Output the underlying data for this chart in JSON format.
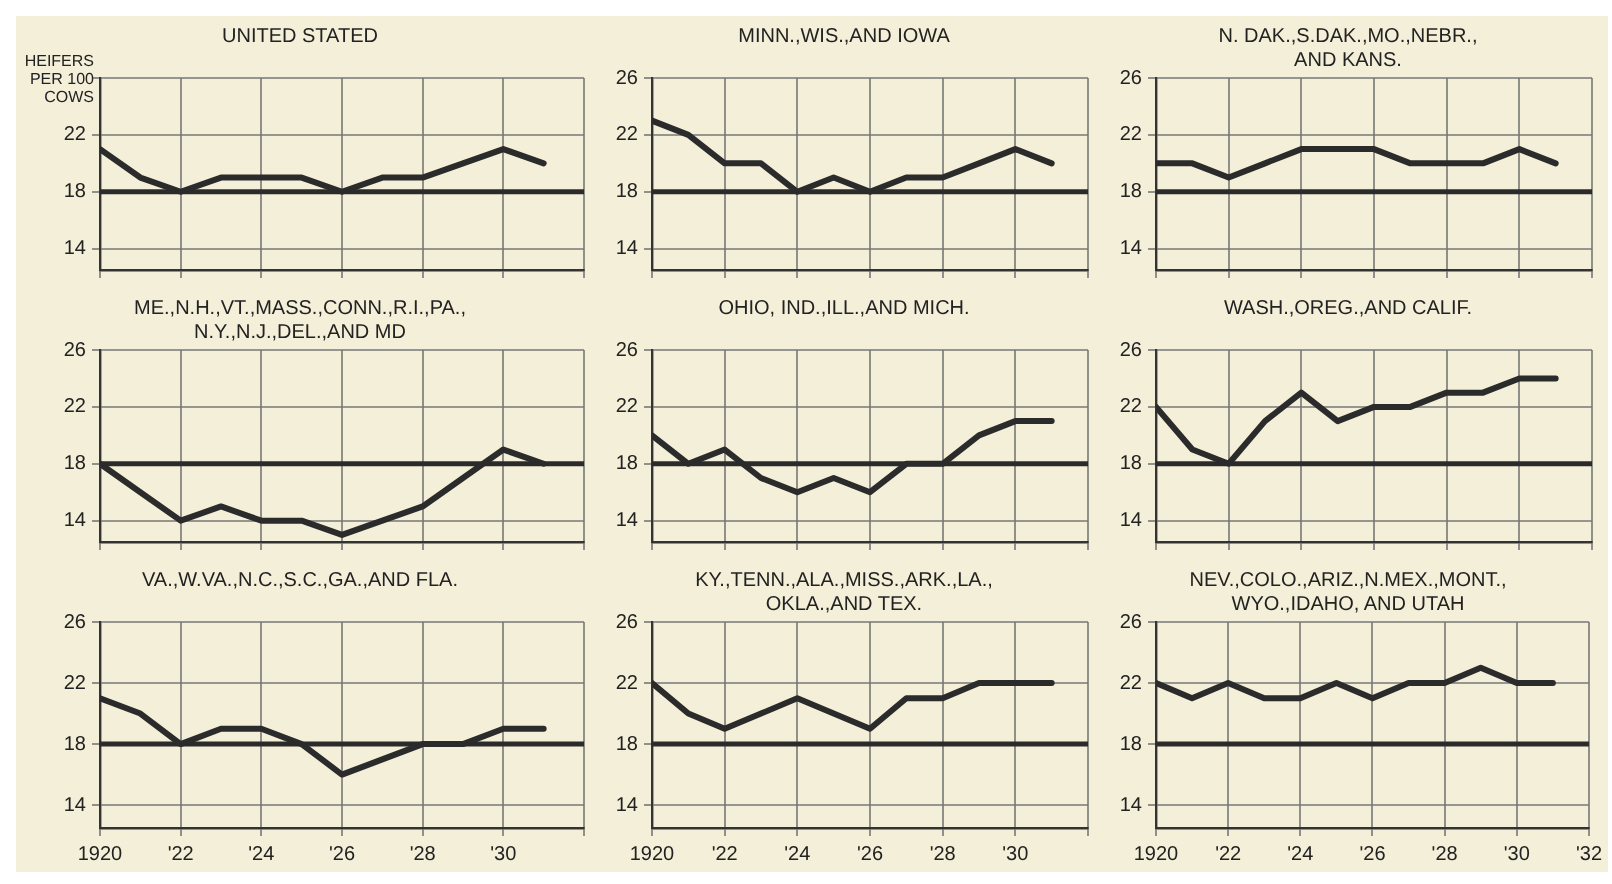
{
  "chart_data": [
    {
      "type": "line",
      "title": "UNITED STATED",
      "ylabel": "HEIFERS PER 100 COWS",
      "x": [
        1920,
        1921,
        1922,
        1923,
        1924,
        1925,
        1926,
        1927,
        1928,
        1929,
        1930,
        1931
      ],
      "series": [
        {
          "color": "#2b2b2b",
          "values": [
            21,
            19,
            18,
            19,
            19,
            19,
            18,
            19,
            19,
            20,
            21,
            20
          ]
        }
      ],
      "xlim": [
        1920,
        1932
      ],
      "xticks": [
        1920,
        1922,
        1924,
        1926,
        1928,
        1930,
        1932
      ],
      "ylim": [
        12.5,
        26
      ],
      "yticks": [
        14,
        18,
        22,
        {
          "value": 26,
          "label": null
        }
      ],
      "grid": true,
      "marker": "none",
      "ref_lines": [
        {
          "axis": "y",
          "value": 18,
          "color": "#2b2b2b"
        }
      ],
      "tick_labels": "y"
    },
    {
      "type": "line",
      "title": "MINN.,WIS.,AND IOWA",
      "x": [
        1920,
        1921,
        1922,
        1923,
        1924,
        1925,
        1926,
        1927,
        1928,
        1929,
        1930,
        1931
      ],
      "series": [
        {
          "color": "#2b2b2b",
          "values": [
            23,
            22,
            20,
            20,
            18,
            19,
            18,
            19,
            19,
            20,
            21,
            20
          ]
        }
      ],
      "xlim": [
        1920,
        1932
      ],
      "xticks": [
        1920,
        1922,
        1924,
        1926,
        1928,
        1930,
        1932
      ],
      "ylim": [
        12.5,
        26
      ],
      "yticks": [
        14,
        18,
        22,
        26
      ],
      "grid": true,
      "marker": "none",
      "ref_lines": [
        {
          "axis": "y",
          "value": 18,
          "color": "#2b2b2b"
        }
      ],
      "tick_labels": "y"
    },
    {
      "type": "line",
      "title": "N. DAK.,S.DAK.,MO.,NEBR.,\nAND KANS.",
      "x": [
        1920,
        1921,
        1922,
        1923,
        1924,
        1925,
        1926,
        1927,
        1928,
        1929,
        1930,
        1931
      ],
      "series": [
        {
          "color": "#2b2b2b",
          "values": [
            20,
            20,
            19,
            20,
            21,
            21,
            21,
            20,
            20,
            20,
            21,
            20
          ]
        }
      ],
      "xlim": [
        1920,
        1932
      ],
      "xticks": [
        1920,
        1922,
        1924,
        1926,
        1928,
        1930,
        1932
      ],
      "ylim": [
        12.5,
        26
      ],
      "yticks": [
        14,
        18,
        22,
        26
      ],
      "grid": true,
      "marker": "none",
      "ref_lines": [
        {
          "axis": "y",
          "value": 18,
          "color": "#2b2b2b"
        }
      ],
      "tick_labels": "y"
    },
    {
      "type": "line",
      "title": "ME.,N.H.,VT.,MASS.,CONN.,R.I.,PA.,\nN.Y.,N.J.,DEL.,AND MD",
      "x": [
        1920,
        1921,
        1922,
        1923,
        1924,
        1925,
        1926,
        1927,
        1928,
        1929,
        1930,
        1931
      ],
      "series": [
        {
          "color": "#2b2b2b",
          "values": [
            18,
            16,
            14,
            15,
            14,
            14,
            13,
            14,
            15,
            17,
            19,
            18
          ]
        }
      ],
      "xlim": [
        1920,
        1932
      ],
      "xticks": [
        1920,
        1922,
        1924,
        1926,
        1928,
        1930,
        1932
      ],
      "ylim": [
        12.5,
        26
      ],
      "yticks": [
        14,
        18,
        22,
        26
      ],
      "grid": true,
      "marker": "none",
      "ref_lines": [
        {
          "axis": "y",
          "value": 18,
          "color": "#2b2b2b"
        }
      ],
      "tick_labels": "y"
    },
    {
      "type": "line",
      "title": "OHIO, IND.,ILL.,AND MICH.",
      "x": [
        1920,
        1921,
        1922,
        1923,
        1924,
        1925,
        1926,
        1927,
        1928,
        1929,
        1930,
        1931
      ],
      "series": [
        {
          "color": "#2b2b2b",
          "values": [
            20,
            18,
            19,
            17,
            16,
            17,
            16,
            18,
            18,
            20,
            21,
            21
          ]
        }
      ],
      "xlim": [
        1920,
        1932
      ],
      "xticks": [
        1920,
        1922,
        1924,
        1926,
        1928,
        1930,
        1932
      ],
      "ylim": [
        12.5,
        26
      ],
      "yticks": [
        14,
        18,
        22,
        26
      ],
      "grid": true,
      "marker": "none",
      "ref_lines": [
        {
          "axis": "y",
          "value": 18,
          "color": "#2b2b2b"
        }
      ],
      "tick_labels": "y"
    },
    {
      "type": "line",
      "title": "WASH.,OREG.,AND CALIF.",
      "x": [
        1920,
        1921,
        1922,
        1923,
        1924,
        1925,
        1926,
        1927,
        1928,
        1929,
        1930,
        1931
      ],
      "series": [
        {
          "color": "#2b2b2b",
          "values": [
            22,
            19,
            18,
            21,
            23,
            21,
            22,
            22,
            23,
            23,
            24,
            24
          ]
        }
      ],
      "xlim": [
        1920,
        1932
      ],
      "xticks": [
        1920,
        1922,
        1924,
        1926,
        1928,
        1930,
        1932
      ],
      "ylim": [
        12.5,
        26
      ],
      "yticks": [
        14,
        18,
        22,
        26
      ],
      "grid": true,
      "marker": "none",
      "ref_lines": [
        {
          "axis": "y",
          "value": 18,
          "color": "#2b2b2b"
        }
      ],
      "tick_labels": "y"
    },
    {
      "type": "line",
      "title": "VA.,W.VA.,N.C.,S.C.,GA.,AND FLA.",
      "x": [
        1920,
        1921,
        1922,
        1923,
        1924,
        1925,
        1926,
        1927,
        1928,
        1929,
        1930,
        1931
      ],
      "series": [
        {
          "color": "#2b2b2b",
          "values": [
            21,
            20,
            18,
            19,
            19,
            18,
            16,
            17,
            18,
            18,
            19,
            19
          ]
        }
      ],
      "xlim": [
        1920,
        1932
      ],
      "xticks": [
        1920,
        {
          "value": 1922,
          "label": "'22"
        },
        {
          "value": 1924,
          "label": "'24"
        },
        {
          "value": 1926,
          "label": "'26"
        },
        {
          "value": 1928,
          "label": "'28"
        },
        {
          "value": 1930,
          "label": "'30"
        },
        {
          "value": 1932,
          "label": null
        }
      ],
      "ylim": [
        12.5,
        26
      ],
      "yticks": [
        14,
        18,
        22,
        26
      ],
      "grid": true,
      "marker": "none",
      "ref_lines": [
        {
          "axis": "y",
          "value": 18,
          "color": "#2b2b2b"
        }
      ]
    },
    {
      "type": "line",
      "title": "KY.,TENN.,ALA.,MISS.,ARK.,LA.,\nOKLA.,AND TEX.",
      "x": [
        1920,
        1921,
        1922,
        1923,
        1924,
        1925,
        1926,
        1927,
        1928,
        1929,
        1930,
        1931
      ],
      "series": [
        {
          "color": "#2b2b2b",
          "values": [
            22,
            20,
            19,
            20,
            21,
            20,
            19,
            21,
            21,
            22,
            22,
            22
          ]
        }
      ],
      "xlim": [
        1920,
        1932
      ],
      "xticks": [
        1920,
        {
          "value": 1922,
          "label": "'22"
        },
        {
          "value": 1924,
          "label": "'24"
        },
        {
          "value": 1926,
          "label": "'26"
        },
        {
          "value": 1928,
          "label": "'28"
        },
        {
          "value": 1930,
          "label": "'30"
        },
        {
          "value": 1932,
          "label": null
        }
      ],
      "ylim": [
        12.5,
        26
      ],
      "yticks": [
        14,
        18,
        22,
        26
      ],
      "grid": true,
      "marker": "none",
      "ref_lines": [
        {
          "axis": "y",
          "value": 18,
          "color": "#2b2b2b"
        }
      ]
    },
    {
      "type": "line",
      "title": "NEV.,COLO.,ARIZ.,N.MEX.,MONT.,\nWYO.,IDAHO, AND UTAH",
      "x": [
        1920,
        1921,
        1922,
        1923,
        1924,
        1925,
        1926,
        1927,
        1928,
        1929,
        1930,
        1931
      ],
      "series": [
        {
          "color": "#2b2b2b",
          "values": [
            22,
            21,
            22,
            21,
            21,
            22,
            21,
            22,
            22,
            23,
            22,
            22
          ]
        }
      ],
      "xlim": [
        1920,
        1932
      ],
      "xticks": [
        1920,
        {
          "value": 1922,
          "label": "'22"
        },
        {
          "value": 1924,
          "label": "'24"
        },
        {
          "value": 1926,
          "label": "'26"
        },
        {
          "value": 1928,
          "label": "'28"
        },
        {
          "value": 1930,
          "label": "'30"
        },
        {
          "value": 1932,
          "label": "'32"
        }
      ],
      "ylim": [
        12.5,
        26
      ],
      "yticks": [
        14,
        18,
        22,
        26
      ],
      "grid": true,
      "marker": "none",
      "ref_lines": [
        {
          "axis": "y",
          "value": 18,
          "color": "#2b2b2b"
        }
      ]
    }
  ]
}
